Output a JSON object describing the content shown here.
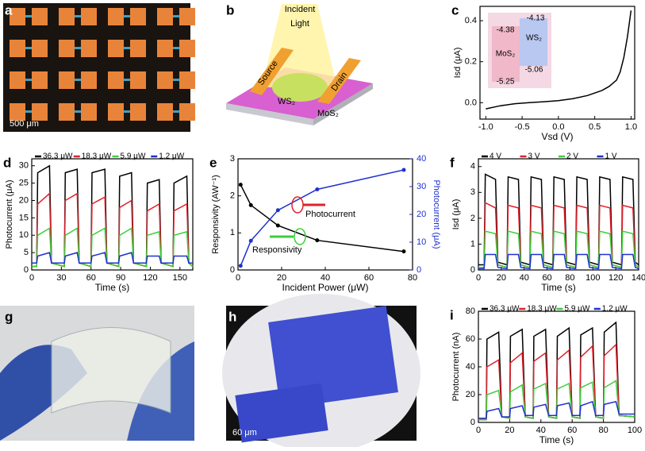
{
  "chart_data": [
    {
      "type": "line",
      "panel": "c",
      "xlabel": "Vsd (V)",
      "ylabel": "Isd (μA)",
      "color": "#000000",
      "x": [
        -1.0,
        -0.8,
        -0.6,
        -0.4,
        -0.2,
        0,
        0.2,
        0.4,
        0.6,
        0.7,
        0.8,
        0.85,
        0.9,
        0.95,
        1.0
      ],
      "values": [
        -0.03,
        -0.015,
        -0.005,
        0,
        0.005,
        0.01,
        0.02,
        0.035,
        0.06,
        0.08,
        0.11,
        0.15,
        0.22,
        0.32,
        0.45
      ],
      "xlim": [
        -1.08,
        1.05
      ],
      "xticks": [
        {
          "value": -1,
          "label": "-1.0"
        },
        -0.5,
        {
          "value": 0,
          "label": "0.0"
        },
        0.5,
        {
          "value": 1,
          "label": "1.0"
        }
      ],
      "ylim": [
        -0.08,
        0.47
      ],
      "yticks": [
        {
          "value": 0,
          "label": "0.0"
        },
        0.2,
        0.4
      ],
      "inset_labels": [
        "-4.38",
        "-4.13",
        "MoS₂",
        "WS₂",
        "-5.25",
        "-5.06"
      ]
    },
    {
      "type": "line",
      "panel": "d",
      "xlabel": "Time (s)",
      "ylabel": "Photocurrent (μA)",
      "legend": "top",
      "x": [
        0,
        5,
        6,
        18,
        20,
        33,
        34,
        46,
        48,
        60,
        61,
        74,
        76,
        88,
        89,
        101,
        103,
        116,
        117,
        129,
        131,
        143,
        144,
        157,
        159,
        163
      ],
      "series": [
        {
          "name": "36.3 μW",
          "color": "#000000",
          "values": [
            1,
            1,
            28,
            30,
            2,
            1,
            28,
            29,
            2,
            1,
            28,
            29,
            2,
            1,
            27,
            28,
            2,
            1,
            25,
            26,
            2,
            1,
            25,
            27,
            2,
            1
          ]
        },
        {
          "name": "18.3 μW",
          "color": "#e0202a",
          "values": [
            1,
            1,
            19,
            22,
            2,
            1,
            20,
            22,
            2,
            1,
            19,
            21,
            2,
            1,
            18,
            20,
            2,
            1,
            17,
            19,
            2,
            1,
            17,
            19,
            2,
            1
          ]
        },
        {
          "name": "5.9 μW",
          "color": "#3ccf3c",
          "values": [
            1,
            1,
            10,
            12,
            2,
            1,
            10,
            12,
            2,
            1,
            10,
            12,
            2,
            1,
            10,
            12,
            2,
            1,
            10,
            11,
            2,
            1,
            10,
            11,
            2,
            1
          ]
        },
        {
          "name": "1.2 μW",
          "color": "#2030d0",
          "values": [
            2,
            2,
            4,
            5,
            2,
            2,
            4,
            5,
            2,
            2,
            4,
            5,
            2,
            2,
            4,
            5,
            2,
            2,
            4,
            4,
            2,
            2,
            4,
            4,
            2,
            2
          ]
        }
      ],
      "xlim": [
        0,
        163
      ],
      "xticks": [
        0,
        30,
        60,
        90,
        120,
        150
      ],
      "ylim": [
        0,
        32
      ],
      "yticks": [
        0,
        5,
        10,
        15,
        20,
        25,
        30
      ]
    },
    {
      "type": "line",
      "panel": "e",
      "xlabel": "Incident Power (μW)",
      "ylabel": "Responsivity (AW⁻¹)",
      "y2label": "Photocurrent (μA)",
      "markers": true,
      "x": [
        1.2,
        5.9,
        18.3,
        36.3,
        76
      ],
      "series": [
        {
          "name": "Responsivity",
          "color": "#000000",
          "values": [
            2.3,
            1.75,
            1.2,
            0.8,
            0.5
          ]
        },
        {
          "name": "Photocurrent",
          "color": "#2030d0",
          "axis": "y2",
          "values": [
            1.5,
            10.5,
            21.5,
            29,
            36
          ]
        }
      ],
      "xlim": [
        0,
        80
      ],
      "xticks": [
        0,
        20,
        40,
        60,
        80
      ],
      "ylim": [
        0,
        3
      ],
      "yticks": [
        0,
        1,
        2,
        3
      ],
      "y2lim": [
        0,
        40
      ],
      "y2ticks": [
        0,
        10,
        20,
        30,
        40
      ]
    },
    {
      "type": "line",
      "panel": "f",
      "xlabel": "Time (s)",
      "ylabel": "Isd (μA)",
      "legend": "top",
      "x": [
        0,
        5,
        6,
        15,
        17,
        25,
        26,
        35,
        37,
        45,
        46,
        55,
        57,
        65,
        66,
        75,
        77,
        85,
        86,
        95,
        97,
        105,
        106,
        115,
        117,
        125,
        126,
        135,
        137,
        140
      ],
      "series": [
        {
          "name": "4 V",
          "color": "#000000",
          "values": [
            0.2,
            0.2,
            3.7,
            3.5,
            0.3,
            0.2,
            3.6,
            3.5,
            0.3,
            0.2,
            3.6,
            3.5,
            0.3,
            0.2,
            3.6,
            3.5,
            0.3,
            0.2,
            3.6,
            3.5,
            0.3,
            0.2,
            3.6,
            3.5,
            0.3,
            0.2,
            3.6,
            3.5,
            0.3,
            0.2
          ]
        },
        {
          "name": "3 V",
          "color": "#e0202a",
          "values": [
            0.1,
            0.1,
            2.6,
            2.4,
            0.2,
            0.1,
            2.5,
            2.4,
            0.2,
            0.1,
            2.5,
            2.4,
            0.2,
            0.1,
            2.5,
            2.4,
            0.2,
            0.1,
            2.5,
            2.4,
            0.2,
            0.1,
            2.5,
            2.4,
            0.2,
            0.1,
            2.5,
            2.4,
            0.2,
            0.1
          ]
        },
        {
          "name": "2 V",
          "color": "#3ccf3c",
          "values": [
            0.1,
            0.1,
            1.5,
            1.4,
            0.2,
            0.1,
            1.5,
            1.4,
            0.2,
            0.1,
            1.5,
            1.4,
            0.2,
            0.1,
            1.5,
            1.4,
            0.2,
            0.1,
            1.5,
            1.4,
            0.2,
            0.1,
            1.5,
            1.4,
            0.2,
            0.1,
            1.5,
            1.4,
            0.2,
            0.1
          ]
        },
        {
          "name": "1 V",
          "color": "#2030d0",
          "values": [
            0.05,
            0.05,
            0.6,
            0.6,
            0.1,
            0.05,
            0.6,
            0.6,
            0.1,
            0.05,
            0.6,
            0.6,
            0.1,
            0.05,
            0.6,
            0.6,
            0.1,
            0.05,
            0.6,
            0.6,
            0.1,
            0.05,
            0.6,
            0.6,
            0.1,
            0.05,
            0.6,
            0.6,
            0.1,
            0.05
          ]
        }
      ],
      "xlim": [
        0,
        140
      ],
      "xticks": [
        0,
        20,
        40,
        60,
        80,
        100,
        120,
        140
      ],
      "ylim": [
        0,
        4.3
      ],
      "yticks": [
        0,
        1,
        2,
        3,
        4
      ]
    },
    {
      "type": "line",
      "panel": "i",
      "xlabel": "Time (s)",
      "ylabel": "Photocurrent (nA)",
      "legend": "top",
      "x": [
        0,
        5,
        5.5,
        13,
        15,
        20,
        20.5,
        28,
        30,
        35,
        35.5,
        43,
        45,
        50,
        50.5,
        58,
        60,
        65,
        65.5,
        73,
        75,
        80,
        80.5,
        88,
        90,
        100
      ],
      "series": [
        {
          "name": "36.3 μW",
          "color": "#000000",
          "values": [
            2,
            2,
            60,
            65,
            4,
            3,
            62,
            67,
            4,
            3,
            62,
            67,
            4,
            3,
            62,
            68,
            4,
            3,
            63,
            68,
            4,
            3,
            65,
            72,
            5,
            4
          ]
        },
        {
          "name": "18.3 μW",
          "color": "#e0202a",
          "values": [
            2,
            2,
            40,
            45,
            4,
            3,
            43,
            50,
            4,
            3,
            44,
            50,
            4,
            3,
            45,
            52,
            4,
            3,
            47,
            55,
            4,
            3,
            48,
            56,
            5,
            4
          ]
        },
        {
          "name": "5.9 μW",
          "color": "#3ccf3c",
          "values": [
            2,
            2,
            20,
            23,
            4,
            3,
            22,
            27,
            4,
            3,
            24,
            28,
            4,
            3,
            24,
            28,
            4,
            3,
            25,
            29,
            4,
            3,
            25,
            30,
            5,
            4
          ]
        },
        {
          "name": "1.2 μW",
          "color": "#2030d0",
          "values": [
            3,
            3,
            8,
            10,
            4,
            4,
            10,
            12,
            5,
            5,
            11,
            13,
            5,
            5,
            12,
            14,
            5,
            5,
            12,
            15,
            5,
            5,
            13,
            15,
            6,
            6
          ]
        }
      ],
      "xlim": [
        0,
        100
      ],
      "xticks": [
        0,
        20,
        40,
        60,
        80,
        100
      ],
      "ylim": [
        0,
        80
      ],
      "yticks": [
        0,
        20,
        40,
        60,
        80
      ]
    }
  ],
  "images": [
    {
      "panel": "a",
      "labels": [
        "500 μm"
      ]
    },
    {
      "panel": "b",
      "labels": [
        "Incident",
        "Light",
        "Source",
        "Drain",
        "WS₂",
        "MoS₂"
      ]
    },
    {
      "panel": "g"
    },
    {
      "panel": "h",
      "labels": [
        "60 μm"
      ]
    }
  ],
  "annotations": [
    "Photocurrent",
    "Responsivity"
  ]
}
